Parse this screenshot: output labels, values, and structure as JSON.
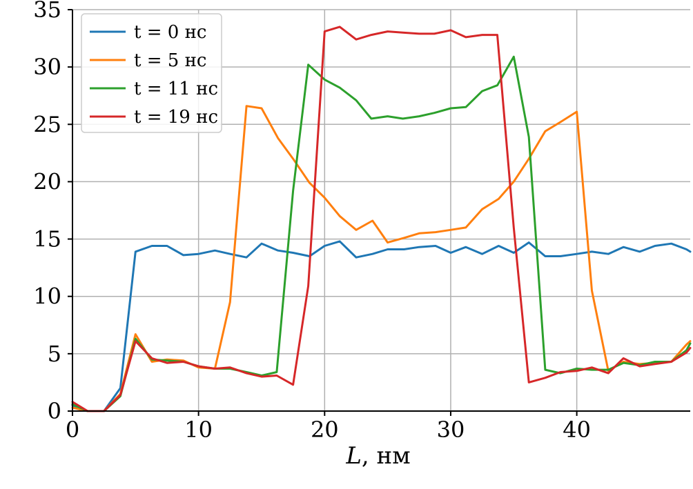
{
  "chart_data": {
    "type": "line",
    "title": "",
    "xlabel_var": "L",
    "xlabel_unit": ", нм",
    "ylabel": "",
    "xlim": [
      0,
      49
    ],
    "ylim": [
      0,
      35
    ],
    "xticks": [
      0,
      10,
      20,
      30,
      40
    ],
    "yticks": [
      0,
      5,
      10,
      15,
      20,
      25,
      30,
      35
    ],
    "grid": true,
    "legend_position": "top-left",
    "series": [
      {
        "name": "t = 0 нс",
        "color": "#1f77b4",
        "x": [
          0,
          1.2,
          2.5,
          3.8,
          5,
          6.3,
          7.5,
          8.8,
          10,
          11.3,
          12.5,
          13.8,
          15,
          16.3,
          17.5,
          18.8,
          20,
          21.2,
          22.5,
          23.8,
          25,
          26.3,
          27.5,
          28.8,
          30,
          31.2,
          32.5,
          33.8,
          35,
          36.2,
          37.5,
          38.7,
          40,
          41.2,
          42.5,
          43.7,
          45,
          46.2,
          47.5,
          48.7,
          49
        ],
        "y": [
          0.5,
          0,
          0,
          2,
          13.9,
          14.4,
          14.4,
          13.6,
          13.7,
          14.0,
          13.7,
          13.4,
          14.6,
          14.0,
          13.8,
          13.5,
          14.4,
          14.8,
          13.4,
          13.7,
          14.1,
          14.1,
          14.3,
          14.4,
          13.8,
          14.3,
          13.7,
          14.4,
          13.8,
          14.7,
          13.5,
          13.5,
          13.7,
          13.9,
          13.7,
          14.3,
          13.9,
          14.4,
          14.6,
          14.1,
          13.9
        ]
      },
      {
        "name": "t = 5 нс",
        "color": "#ff7f0e",
        "x": [
          0,
          1.2,
          2.5,
          3.8,
          5,
          6.3,
          7.5,
          8.8,
          10,
          11.3,
          12.5,
          13.8,
          15,
          16.3,
          17.5,
          18.8,
          20,
          21.2,
          22.5,
          23.8,
          25,
          26.3,
          27.5,
          28.8,
          30,
          31.2,
          32.5,
          33.8,
          35,
          36.2,
          37.5,
          38.7,
          40,
          41.2,
          42.5,
          43.7,
          45,
          46.2,
          47.5,
          48.7,
          49
        ],
        "y": [
          0.3,
          0,
          0,
          1.5,
          6.7,
          4.3,
          4.5,
          4.4,
          3.8,
          3.7,
          9.5,
          26.6,
          26.4,
          23.8,
          22.0,
          19.9,
          18.6,
          17.0,
          15.8,
          16.6,
          14.7,
          15.1,
          15.5,
          15.6,
          15.8,
          16.0,
          17.6,
          18.5,
          20.0,
          22.0,
          24.4,
          25.2,
          26.1,
          10.5,
          3.5,
          4.3,
          4.1,
          4.2,
          4.3,
          5.8,
          6.1
        ]
      },
      {
        "name": "t = 11 нс",
        "color": "#2ca02c",
        "x": [
          0,
          1.2,
          2.5,
          3.8,
          5,
          6.3,
          7.5,
          8.8,
          10,
          11.3,
          12.5,
          13.8,
          15,
          16.2,
          17.5,
          18.7,
          20,
          21.2,
          22.5,
          23.7,
          25,
          26.2,
          27.5,
          28.7,
          30,
          31.2,
          32.5,
          33.7,
          35,
          36.2,
          37.5,
          38.7,
          40,
          41.2,
          42.5,
          43.7,
          45,
          46.2,
          47.5,
          48.7,
          49
        ],
        "y": [
          0.6,
          0,
          0,
          1.3,
          6.3,
          4.5,
          4.4,
          4.3,
          3.9,
          3.7,
          3.7,
          3.4,
          3.1,
          3.4,
          19.2,
          30.2,
          28.9,
          28.2,
          27.1,
          25.5,
          25.7,
          25.5,
          25.7,
          26.0,
          26.4,
          26.5,
          27.9,
          28.4,
          30.9,
          23.9,
          3.6,
          3.3,
          3.7,
          3.6,
          3.6,
          4.2,
          4.0,
          4.3,
          4.3,
          5.3,
          5.9
        ]
      },
      {
        "name": "t = 19 нс",
        "color": "#d62728",
        "x": [
          0,
          1.2,
          2.5,
          3.8,
          5,
          6.3,
          7.5,
          8.8,
          10,
          11.3,
          12.5,
          13.8,
          15,
          16.2,
          17.5,
          18.7,
          20,
          21.2,
          22.5,
          23.7,
          25,
          26.2,
          27.5,
          28.7,
          30,
          31.2,
          32.5,
          33.7,
          35,
          36.2,
          37.5,
          38.7,
          40,
          41.2,
          42.5,
          43.7,
          45,
          46.2,
          47.5,
          48.7,
          49
        ],
        "y": [
          0.8,
          0,
          0,
          1.4,
          6.1,
          4.6,
          4.2,
          4.3,
          3.9,
          3.7,
          3.8,
          3.3,
          3.0,
          3.1,
          2.3,
          10.9,
          33.1,
          33.5,
          32.4,
          32.8,
          33.1,
          33.0,
          32.9,
          32.9,
          33.2,
          32.6,
          32.8,
          32.8,
          16.0,
          2.5,
          2.9,
          3.4,
          3.5,
          3.8,
          3.3,
          4.6,
          3.9,
          4.1,
          4.3,
          5.1,
          5.5
        ]
      }
    ]
  }
}
